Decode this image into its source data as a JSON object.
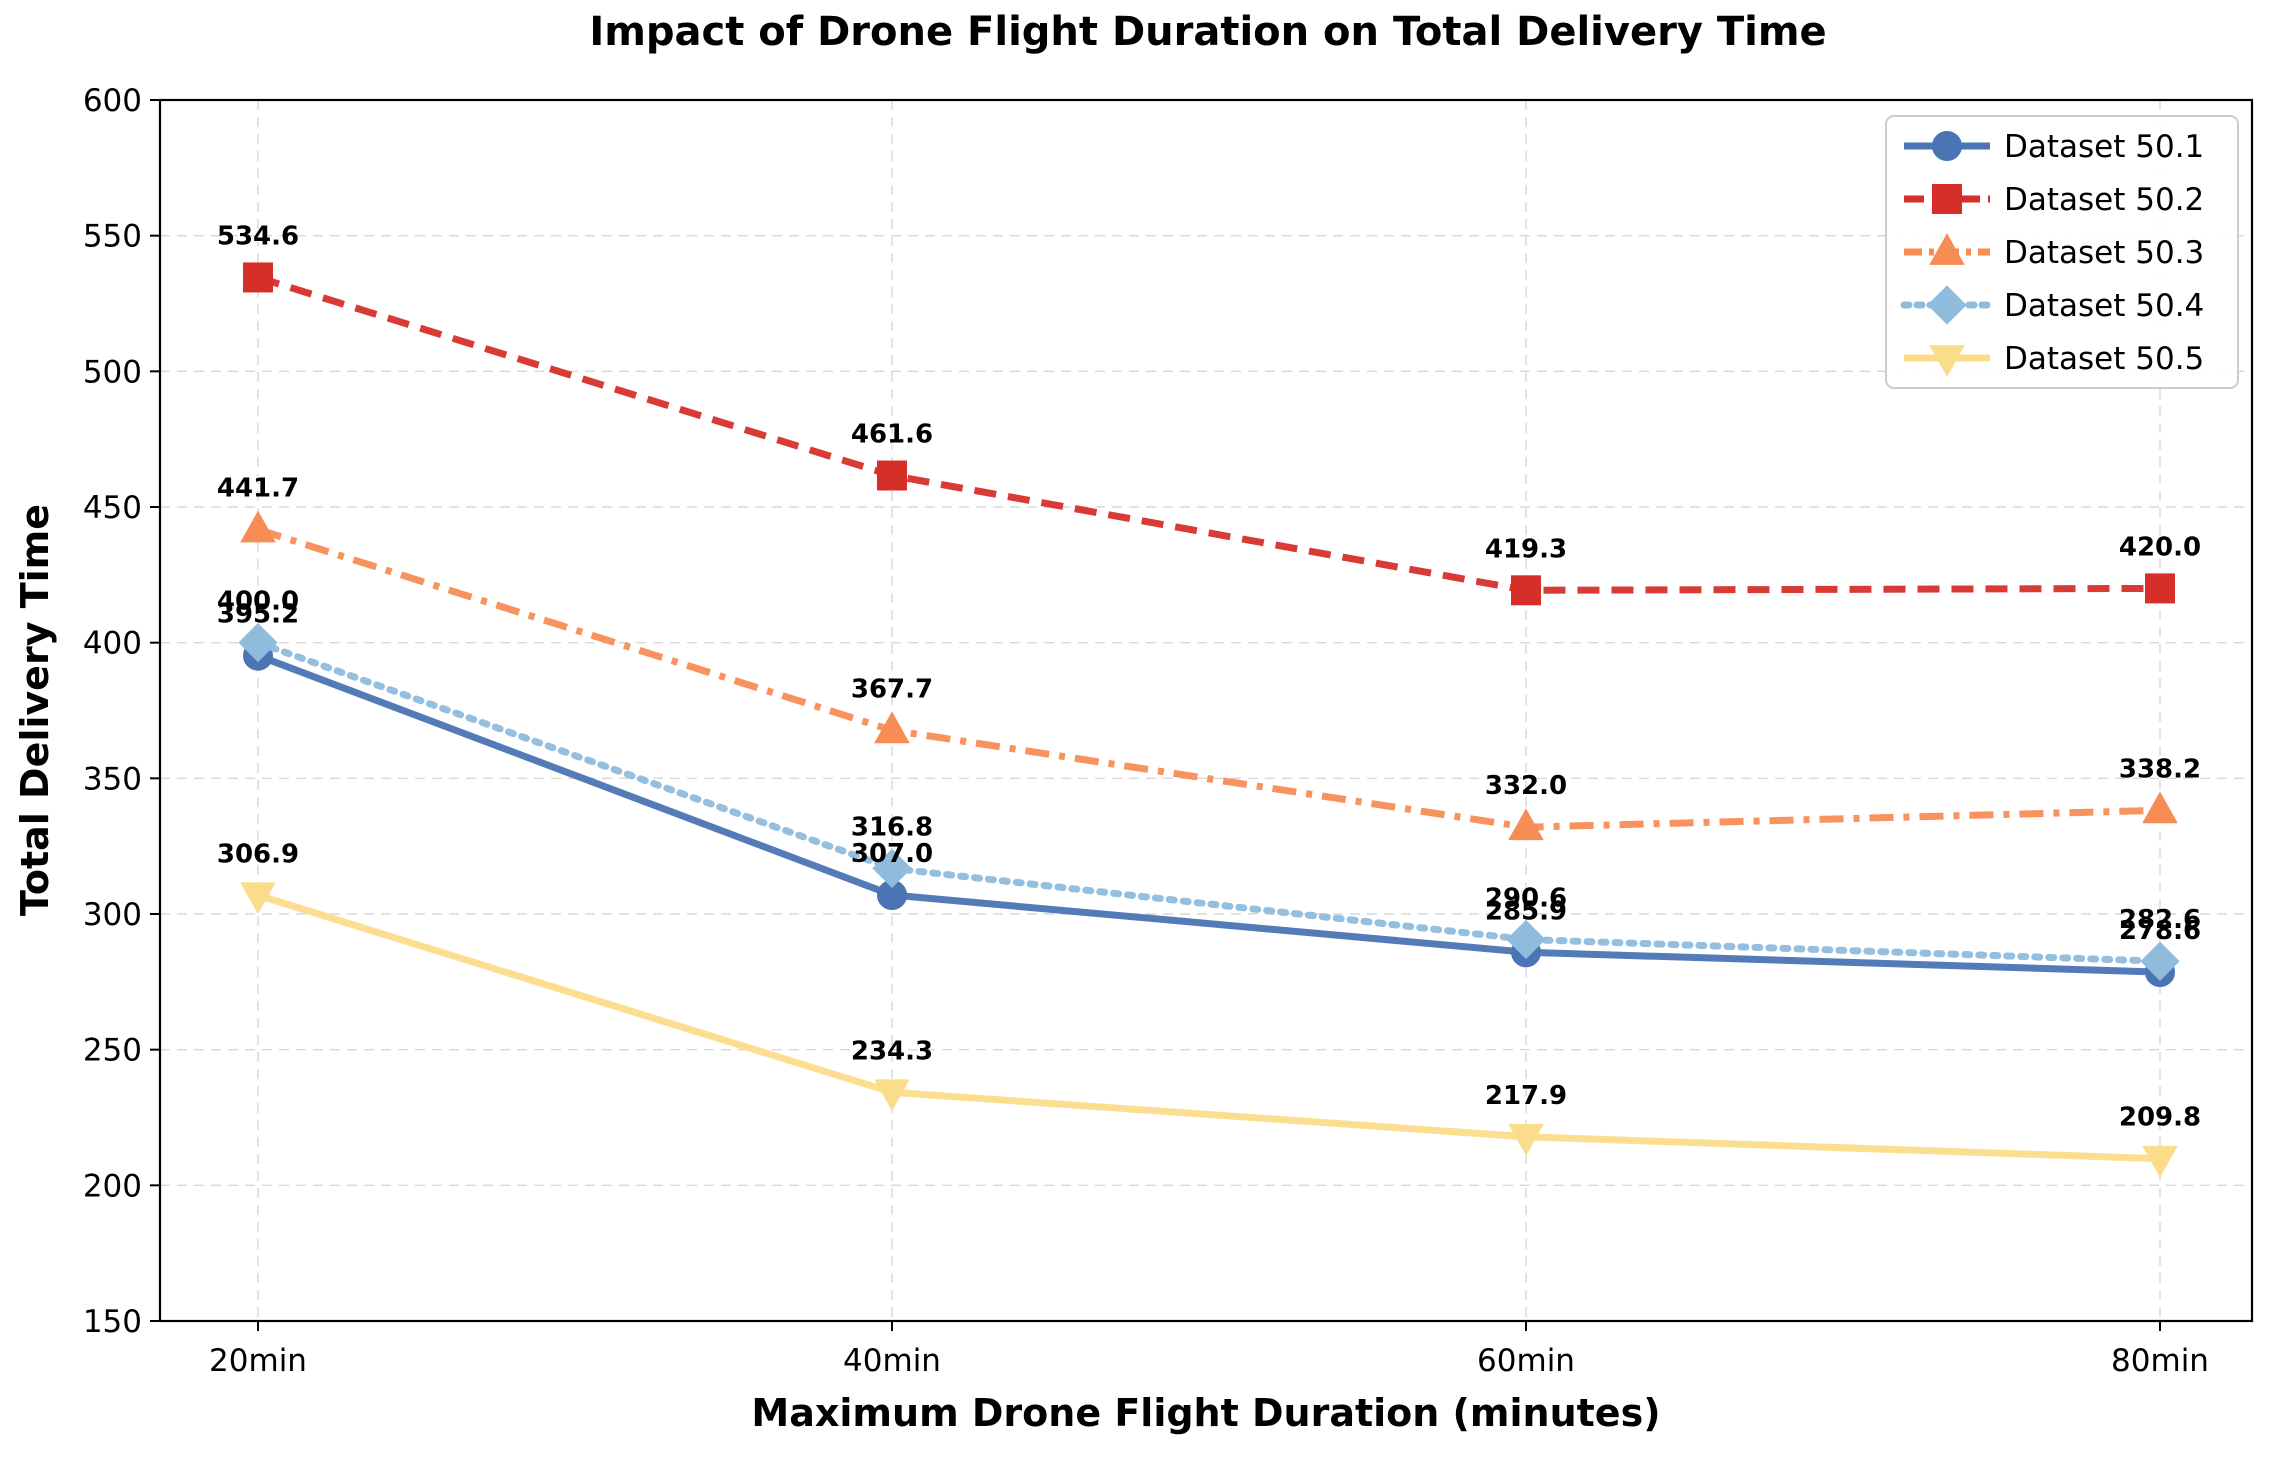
{
  "chart_data": {
    "type": "line",
    "title": "Impact of Drone Flight Duration on Total Delivery Time",
    "xlabel": "Maximum Drone Flight Duration (minutes)",
    "ylabel": "Total Delivery Time",
    "categories": [
      "20min",
      "40min",
      "60min",
      "80min"
    ],
    "ylim": [
      150,
      600
    ],
    "yticks": [
      150,
      200,
      250,
      300,
      350,
      400,
      450,
      500,
      550,
      600
    ],
    "grid": true,
    "legend_position": "top-right",
    "series": [
      {
        "name": "Dataset 50.1",
        "values": [
          395.2,
          307.0,
          285.9,
          278.6
        ],
        "color": "#4a74b4",
        "dash": "solid",
        "marker": "circle",
        "labels": [
          "395.2",
          "307.0",
          "285.9",
          "278.6"
        ]
      },
      {
        "name": "Dataset 50.2",
        "values": [
          534.6,
          461.6,
          419.3,
          420.0
        ],
        "color": "#d62f2a",
        "dash": "dashed",
        "marker": "square",
        "labels": [
          "534.6",
          "461.6",
          "419.3",
          "420.0"
        ]
      },
      {
        "name": "Dataset 50.3",
        "values": [
          441.7,
          367.7,
          332.0,
          338.2
        ],
        "color": "#f88c55",
        "dash": "dashdot",
        "marker": "triangle-up",
        "labels": [
          "441.7",
          "367.7",
          "332.0",
          "338.2"
        ]
      },
      {
        "name": "Dataset 50.4",
        "values": [
          400.0,
          316.8,
          290.6,
          282.6
        ],
        "color": "#8fbcdc",
        "dash": "dotted",
        "marker": "diamond",
        "labels": [
          "400.0",
          "316.8",
          "290.6",
          "282.6"
        ]
      },
      {
        "name": "Dataset 50.5",
        "values": [
          306.9,
          234.3,
          217.9,
          209.8
        ],
        "color": "#fbdc8a",
        "dash": "solid",
        "marker": "triangle-down",
        "labels": [
          "306.9",
          "234.3",
          "217.9",
          "209.8"
        ]
      }
    ]
  }
}
